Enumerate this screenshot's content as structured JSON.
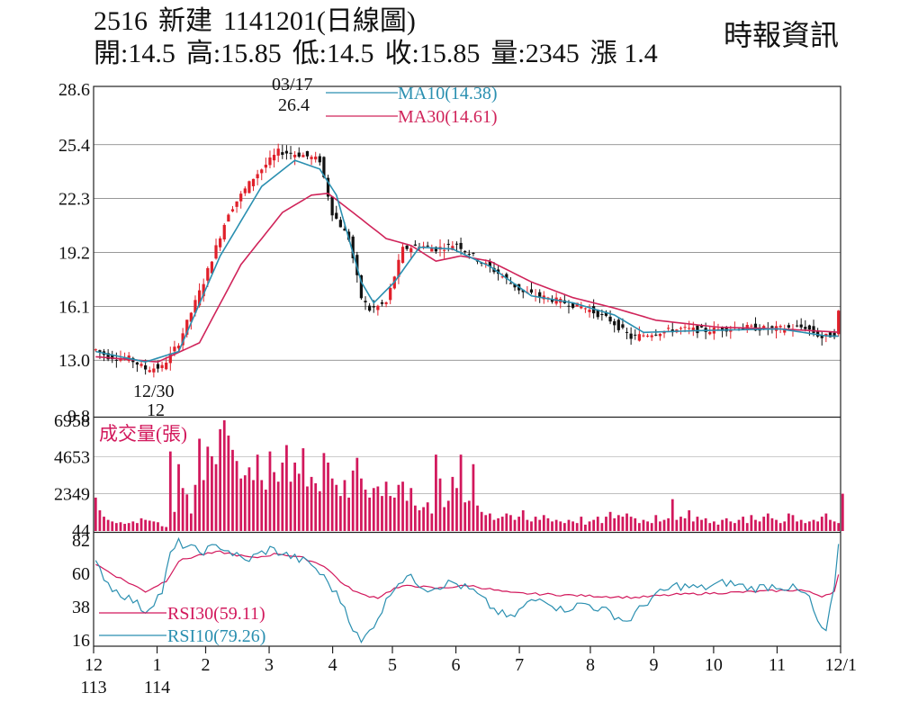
{
  "header": {
    "code": "2516",
    "name": "新建",
    "date_title": "1141201(日線圖)",
    "source": "時報資訊",
    "quote": {
      "open_label": "開:",
      "open": "14.5",
      "high_label": "高:",
      "high": "15.85",
      "low_label": "低:",
      "low": "14.5",
      "close_label": "收:",
      "close": "15.85",
      "volume_label": "量:",
      "volume": "2345",
      "change_label": "漲",
      "change": "1.4"
    }
  },
  "chart_data": [
    {
      "type": "candlestick",
      "panel": "price",
      "y_ticks": [
        "28.6",
        "25.4",
        "22.3",
        "19.2",
        "16.1",
        "13.0",
        "9.8"
      ],
      "y_tick_values": [
        28.6,
        25.4,
        22.3,
        19.2,
        16.1,
        13.0,
        9.8
      ],
      "ylim": [
        9.8,
        28.6
      ],
      "grid": true,
      "up_color": "#e0202a",
      "down_color": "#111111",
      "legend": [
        {
          "name": "MA10(14.38)",
          "color": "#2a8fb0"
        },
        {
          "name": "MA30(14.61)",
          "color": "#d0245a"
        }
      ],
      "annotations": [
        {
          "date": "03/17",
          "value": "26.4",
          "kind": "high"
        },
        {
          "date": "12/30",
          "value": "12",
          "kind": "low"
        }
      ],
      "close_anchors": [
        {
          "t": 0,
          "v": 13.6
        },
        {
          "t": 3,
          "v": 13.2
        },
        {
          "t": 8,
          "v": 13.1
        },
        {
          "t": 12,
          "v": 12.5
        },
        {
          "t": 16,
          "v": 12.6
        },
        {
          "t": 20,
          "v": 14.0
        },
        {
          "t": 26,
          "v": 17.5
        },
        {
          "t": 32,
          "v": 21.5
        },
        {
          "t": 38,
          "v": 23.5
        },
        {
          "t": 44,
          "v": 25.0
        },
        {
          "t": 50,
          "v": 24.8
        },
        {
          "t": 54,
          "v": 24.5
        },
        {
          "t": 57,
          "v": 21.5
        },
        {
          "t": 61,
          "v": 20.0
        },
        {
          "t": 64,
          "v": 16.6
        },
        {
          "t": 66,
          "v": 15.9
        },
        {
          "t": 70,
          "v": 16.3
        },
        {
          "t": 74,
          "v": 19.4
        },
        {
          "t": 78,
          "v": 19.6
        },
        {
          "t": 82,
          "v": 19.4
        },
        {
          "t": 87,
          "v": 19.7
        },
        {
          "t": 92,
          "v": 18.8
        },
        {
          "t": 97,
          "v": 18.0
        },
        {
          "t": 103,
          "v": 16.9
        },
        {
          "t": 110,
          "v": 16.5
        },
        {
          "t": 118,
          "v": 16.0
        },
        {
          "t": 124,
          "v": 15.3
        },
        {
          "t": 129,
          "v": 14.3
        },
        {
          "t": 135,
          "v": 14.6
        },
        {
          "t": 141,
          "v": 14.8
        },
        {
          "t": 147,
          "v": 14.7
        },
        {
          "t": 155,
          "v": 14.9
        },
        {
          "t": 163,
          "v": 14.8
        },
        {
          "t": 171,
          "v": 14.9
        },
        {
          "t": 175,
          "v": 14.3
        },
        {
          "t": 178,
          "v": 14.5
        },
        {
          "t": 179,
          "v": 15.85
        }
      ],
      "ma10_anchors": [
        {
          "t": 0,
          "v": 13.5
        },
        {
          "t": 12,
          "v": 12.9
        },
        {
          "t": 20,
          "v": 13.5
        },
        {
          "t": 30,
          "v": 19.0
        },
        {
          "t": 40,
          "v": 23.0
        },
        {
          "t": 48,
          "v": 24.5
        },
        {
          "t": 54,
          "v": 24.0
        },
        {
          "t": 58,
          "v": 22.5
        },
        {
          "t": 64,
          "v": 17.5
        },
        {
          "t": 67,
          "v": 16.3
        },
        {
          "t": 72,
          "v": 17.5
        },
        {
          "t": 78,
          "v": 19.5
        },
        {
          "t": 86,
          "v": 19.4
        },
        {
          "t": 95,
          "v": 18.4
        },
        {
          "t": 105,
          "v": 16.7
        },
        {
          "t": 115,
          "v": 16.3
        },
        {
          "t": 125,
          "v": 15.6
        },
        {
          "t": 132,
          "v": 14.6
        },
        {
          "t": 145,
          "v": 14.7
        },
        {
          "t": 165,
          "v": 14.8
        },
        {
          "t": 176,
          "v": 14.4
        },
        {
          "t": 179,
          "v": 14.38
        }
      ],
      "ma30_anchors": [
        {
          "t": 0,
          "v": 13.2
        },
        {
          "t": 15,
          "v": 12.9
        },
        {
          "t": 25,
          "v": 14.0
        },
        {
          "t": 35,
          "v": 18.5
        },
        {
          "t": 45,
          "v": 21.5
        },
        {
          "t": 52,
          "v": 22.5
        },
        {
          "t": 56,
          "v": 22.6
        },
        {
          "t": 62,
          "v": 21.5
        },
        {
          "t": 70,
          "v": 20.0
        },
        {
          "t": 76,
          "v": 19.6
        },
        {
          "t": 82,
          "v": 18.7
        },
        {
          "t": 88,
          "v": 19.0
        },
        {
          "t": 95,
          "v": 18.7
        },
        {
          "t": 105,
          "v": 17.5
        },
        {
          "t": 115,
          "v": 16.6
        },
        {
          "t": 125,
          "v": 16.0
        },
        {
          "t": 135,
          "v": 15.3
        },
        {
          "t": 150,
          "v": 14.9
        },
        {
          "t": 165,
          "v": 14.8
        },
        {
          "t": 179,
          "v": 14.61
        }
      ]
    },
    {
      "type": "bar",
      "panel": "volume",
      "title": "成交量(張)",
      "y_ticks": [
        "6958",
        "4653",
        "2349",
        "44"
      ],
      "y_tick_values": [
        6958,
        4653,
        2349,
        44
      ],
      "ylim": [
        0,
        6958
      ],
      "color": "#d2185c",
      "values": [
        2100,
        1300,
        900,
        700,
        600,
        500,
        550,
        450,
        500,
        600,
        500,
        800,
        700,
        650,
        600,
        550,
        300,
        250,
        5000,
        1200,
        4200,
        2700,
        2300,
        1100,
        2900,
        5800,
        3200,
        5300,
        4700,
        4200,
        6400,
        6958,
        6000,
        5100,
        4400,
        3300,
        3500,
        4000,
        3200,
        4800,
        3200,
        2600,
        5000,
        3700,
        3100,
        4300,
        5400,
        3100,
        4300,
        3600,
        5200,
        2800,
        3400,
        3000,
        2500,
        4900,
        4300,
        3300,
        2900,
        2200,
        3200,
        2100,
        3800,
        4600,
        3300,
        2600,
        2100,
        2700,
        2800,
        2200,
        3100,
        2200,
        2100,
        2900,
        3100,
        1900,
        2700,
        1600,
        1300,
        1500,
        1800,
        1100,
        4800,
        3300,
        1500,
        1900,
        3400,
        2700,
        4800,
        1800,
        1900,
        4200,
        1600,
        1200,
        1000,
        1100,
        700,
        800,
        900,
        1100,
        1000,
        700,
        900,
        1300,
        700,
        600,
        900,
        700,
        1000,
        800,
        600,
        700,
        600,
        500,
        700,
        600,
        500,
        900,
        400,
        600,
        700,
        900,
        500,
        900,
        1200,
        800,
        1000,
        900,
        1100,
        900,
        800,
        500,
        700,
        600,
        500,
        1000,
        600,
        700,
        800,
        2000,
        700,
        900,
        800,
        1300,
        600,
        900,
        700,
        800,
        500,
        600,
        400,
        700,
        800,
        600,
        500,
        700,
        900,
        500,
        1000,
        700,
        600,
        900,
        1100,
        800,
        700,
        500,
        600,
        1100,
        1000,
        600,
        700,
        500,
        600,
        700,
        600,
        900,
        1100,
        700,
        600,
        500,
        2345
      ]
    },
    {
      "type": "line",
      "panel": "rsi",
      "y_ticks": [
        "82",
        "60",
        "38",
        "16"
      ],
      "y_tick_values": [
        82,
        60,
        38,
        16
      ],
      "ylim": [
        12,
        86
      ],
      "series": [
        {
          "name": "RSI30(59.11)",
          "color": "#d2185c",
          "current": 59.11,
          "anchors": [
            {
              "t": 0,
              "v": 66
            },
            {
              "t": 5,
              "v": 58
            },
            {
              "t": 12,
              "v": 48
            },
            {
              "t": 17,
              "v": 55
            },
            {
              "t": 20,
              "v": 68
            },
            {
              "t": 25,
              "v": 72
            },
            {
              "t": 30,
              "v": 74
            },
            {
              "t": 38,
              "v": 70
            },
            {
              "t": 44,
              "v": 73
            },
            {
              "t": 50,
              "v": 70
            },
            {
              "t": 55,
              "v": 65
            },
            {
              "t": 60,
              "v": 52
            },
            {
              "t": 64,
              "v": 46
            },
            {
              "t": 68,
              "v": 44
            },
            {
              "t": 72,
              "v": 50
            },
            {
              "t": 76,
              "v": 52
            },
            {
              "t": 82,
              "v": 50
            },
            {
              "t": 90,
              "v": 52
            },
            {
              "t": 100,
              "v": 47
            },
            {
              "t": 110,
              "v": 46
            },
            {
              "t": 120,
              "v": 45
            },
            {
              "t": 130,
              "v": 44
            },
            {
              "t": 140,
              "v": 46
            },
            {
              "t": 150,
              "v": 47
            },
            {
              "t": 160,
              "v": 48
            },
            {
              "t": 170,
              "v": 49
            },
            {
              "t": 175,
              "v": 45
            },
            {
              "t": 178,
              "v": 48
            },
            {
              "t": 179,
              "v": 59.11
            }
          ]
        },
        {
          "name": "RSI10(79.26)",
          "color": "#2a8fb0",
          "current": 79.26,
          "anchors": [
            {
              "t": 0,
              "v": 66
            },
            {
              "t": 4,
              "v": 50
            },
            {
              "t": 9,
              "v": 42
            },
            {
              "t": 12,
              "v": 35
            },
            {
              "t": 16,
              "v": 48
            },
            {
              "t": 18,
              "v": 72
            },
            {
              "t": 20,
              "v": 80
            },
            {
              "t": 25,
              "v": 74
            },
            {
              "t": 30,
              "v": 78
            },
            {
              "t": 36,
              "v": 68
            },
            {
              "t": 42,
              "v": 76
            },
            {
              "t": 48,
              "v": 70
            },
            {
              "t": 52,
              "v": 66
            },
            {
              "t": 56,
              "v": 54
            },
            {
              "t": 60,
              "v": 38
            },
            {
              "t": 62,
              "v": 24
            },
            {
              "t": 64,
              "v": 14
            },
            {
              "t": 66,
              "v": 22
            },
            {
              "t": 69,
              "v": 36
            },
            {
              "t": 72,
              "v": 52
            },
            {
              "t": 75,
              "v": 58
            },
            {
              "t": 80,
              "v": 50
            },
            {
              "t": 86,
              "v": 54
            },
            {
              "t": 91,
              "v": 48
            },
            {
              "t": 96,
              "v": 36
            },
            {
              "t": 100,
              "v": 30
            },
            {
              "t": 104,
              "v": 40
            },
            {
              "t": 108,
              "v": 44
            },
            {
              "t": 112,
              "v": 36
            },
            {
              "t": 118,
              "v": 40
            },
            {
              "t": 124,
              "v": 34
            },
            {
              "t": 128,
              "v": 28
            },
            {
              "t": 134,
              "v": 44
            },
            {
              "t": 140,
              "v": 52
            },
            {
              "t": 146,
              "v": 50
            },
            {
              "t": 152,
              "v": 54
            },
            {
              "t": 158,
              "v": 50
            },
            {
              "t": 164,
              "v": 52
            },
            {
              "t": 168,
              "v": 50
            },
            {
              "t": 172,
              "v": 44
            },
            {
              "t": 174,
              "v": 26
            },
            {
              "t": 176,
              "v": 22
            },
            {
              "t": 178,
              "v": 50
            },
            {
              "t": 179,
              "v": 79.26
            }
          ]
        }
      ]
    }
  ],
  "x_axis": {
    "days": 180,
    "ticks": [
      {
        "label": "12",
        "sub": "113",
        "t": 0
      },
      {
        "label": "1",
        "sub": "114",
        "t": 17
      },
      {
        "label": "2",
        "t": 30
      },
      {
        "label": "3",
        "t": 47
      },
      {
        "label": "4",
        "t": 64
      },
      {
        "label": "5",
        "t": 80
      },
      {
        "label": "6",
        "t": 97
      },
      {
        "label": "7",
        "t": 114
      },
      {
        "label": "8",
        "t": 133
      },
      {
        "label": "9",
        "t": 150
      },
      {
        "label": "10",
        "t": 166
      },
      {
        "label": "11",
        "t": 183
      },
      {
        "label": "12/1",
        "t": 200
      }
    ]
  }
}
